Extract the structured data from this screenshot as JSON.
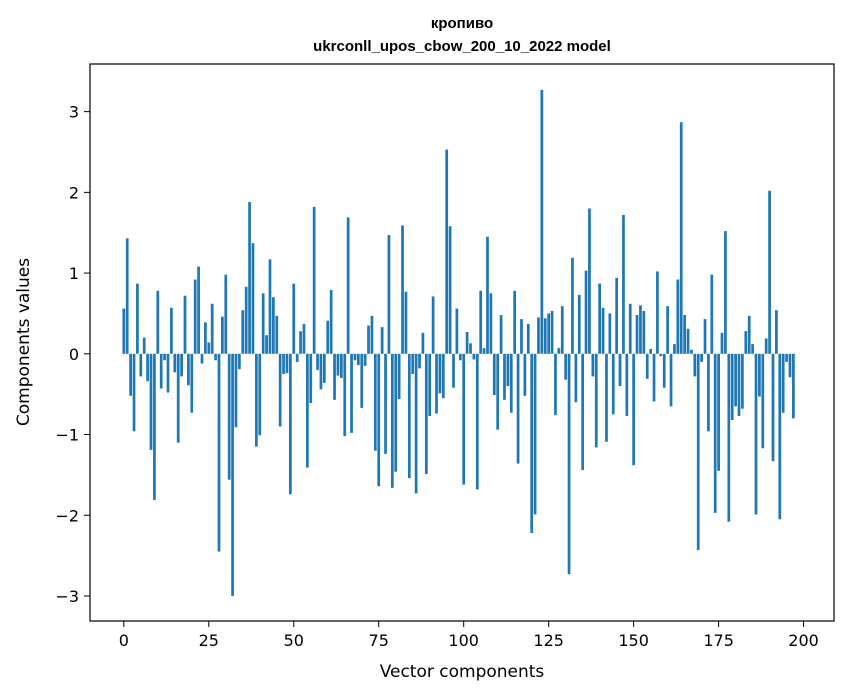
{
  "chart_data": {
    "type": "bar",
    "title_line1": "кропиво",
    "title_line2": "ukrconll_upos_cbow_200_10_2022 model",
    "xlabel": "Vector components",
    "ylabel": "Components values",
    "xlim": [
      -9.95,
      208.95
    ],
    "ylim": [
      -3.31,
      3.59
    ],
    "xticks": [
      0,
      25,
      50,
      75,
      100,
      125,
      150,
      175,
      200
    ],
    "yticks": [
      -3,
      -2,
      -1,
      0,
      1,
      2,
      3
    ],
    "xtick_labels": [
      "0",
      "25",
      "50",
      "75",
      "100",
      "125",
      "150",
      "175",
      "200"
    ],
    "ytick_labels": [
      "−3",
      "−2",
      "−1",
      "0",
      "1",
      "2",
      "3"
    ],
    "bar_color": "#1f77b4",
    "bar_width": 0.8,
    "values": [
      0.56,
      1.43,
      -0.52,
      -0.96,
      0.87,
      -0.28,
      0.2,
      -0.34,
      -1.19,
      -1.81,
      0.78,
      -0.43,
      -0.08,
      -0.48,
      0.57,
      -0.23,
      -1.1,
      -0.28,
      0.72,
      -0.39,
      -0.73,
      0.92,
      1.08,
      -0.12,
      0.39,
      0.14,
      0.62,
      -0.08,
      -2.45,
      0.46,
      0.98,
      -1.56,
      -3.0,
      -0.91,
      -0.19,
      0.54,
      0.83,
      1.88,
      1.37,
      -1.15,
      -1.01,
      0.75,
      0.23,
      1.17,
      0.7,
      0.47,
      -0.9,
      -0.25,
      -0.24,
      -1.74,
      0.87,
      -0.1,
      0.28,
      0.37,
      -1.41,
      -0.61,
      1.82,
      -0.2,
      -0.44,
      -0.36,
      0.41,
      0.79,
      -0.57,
      -0.27,
      -0.3,
      -1.02,
      1.69,
      -0.98,
      -0.08,
      -0.14,
      -0.67,
      -0.15,
      0.35,
      0.47,
      -1.2,
      -1.64,
      0.33,
      -1.24,
      1.47,
      -1.66,
      -1.46,
      -0.56,
      1.59,
      0.77,
      -1.54,
      -0.25,
      -1.73,
      -0.18,
      0.26,
      -1.49,
      -0.77,
      0.71,
      -0.74,
      -0.49,
      -0.55,
      2.53,
      1.58,
      -0.42,
      0.56,
      -0.08,
      -1.62,
      0.27,
      0.13,
      -0.07,
      -1.68,
      0.78,
      0.07,
      1.45,
      0.75,
      -0.51,
      -0.94,
      0.48,
      -0.57,
      -0.4,
      -0.73,
      0.78,
      -1.36,
      0.43,
      -0.52,
      0.37,
      -2.22,
      -1.99,
      0.45,
      3.27,
      0.44,
      0.5,
      0.53,
      -0.76,
      0.07,
      0.59,
      -0.32,
      -2.73,
      1.19,
      -0.6,
      0.73,
      -1.44,
      1.03,
      1.8,
      -0.28,
      -1.16,
      0.87,
      0.57,
      -1.09,
      0.5,
      -0.75,
      0.94,
      -0.4,
      1.72,
      -0.77,
      0.62,
      -1.38,
      0.48,
      0.6,
      0.53,
      -0.31,
      0.06,
      -0.59,
      1.02,
      -0.03,
      -0.42,
      0.59,
      -0.65,
      0.12,
      0.92,
      2.87,
      0.48,
      0.31,
      0.05,
      -0.28,
      -2.43,
      -0.1,
      0.43,
      -0.96,
      0.98,
      -1.97,
      -1.45,
      0.26,
      1.52,
      -2.08,
      -0.82,
      -0.65,
      -0.77,
      -0.68,
      0.28,
      0.47,
      0.12,
      -1.99,
      -0.53,
      -1.17,
      0.19,
      2.02,
      -1.33,
      0.54,
      -2.05,
      -0.73,
      -0.1,
      -0.29,
      -0.8
    ]
  }
}
